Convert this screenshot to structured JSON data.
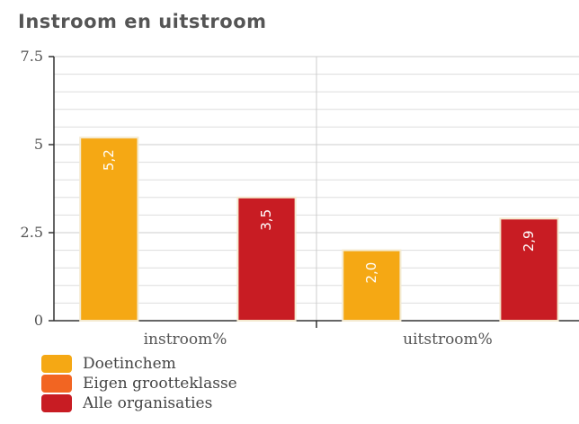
{
  "chart_data": {
    "type": "bar",
    "title": "Instroom en uitstroom",
    "categories": [
      "instroom%",
      "uitstroom%"
    ],
    "series": [
      {
        "name": "Doetinchem",
        "values": [
          5.2,
          2.0
        ],
        "labels": [
          "5,2",
          "2,0"
        ],
        "color": "#f5a814"
      },
      {
        "name": "Eigen grootteklasse",
        "values": [
          null,
          null
        ],
        "labels": [
          "",
          ""
        ],
        "color": "#f26522"
      },
      {
        "name": "Alle organisaties",
        "values": [
          3.5,
          2.9
        ],
        "labels": [
          "3,5",
          "2,9"
        ],
        "color": "#c81c23"
      }
    ],
    "yticks": [
      {
        "value": 0,
        "label": "0"
      },
      {
        "value": 2.5,
        "label": "2.5"
      },
      {
        "value": 5,
        "label": "5"
      },
      {
        "value": 7.5,
        "label": "7.5"
      }
    ],
    "ylim": [
      0,
      7.5
    ],
    "grid": true,
    "legend_position": "bottom-left"
  }
}
